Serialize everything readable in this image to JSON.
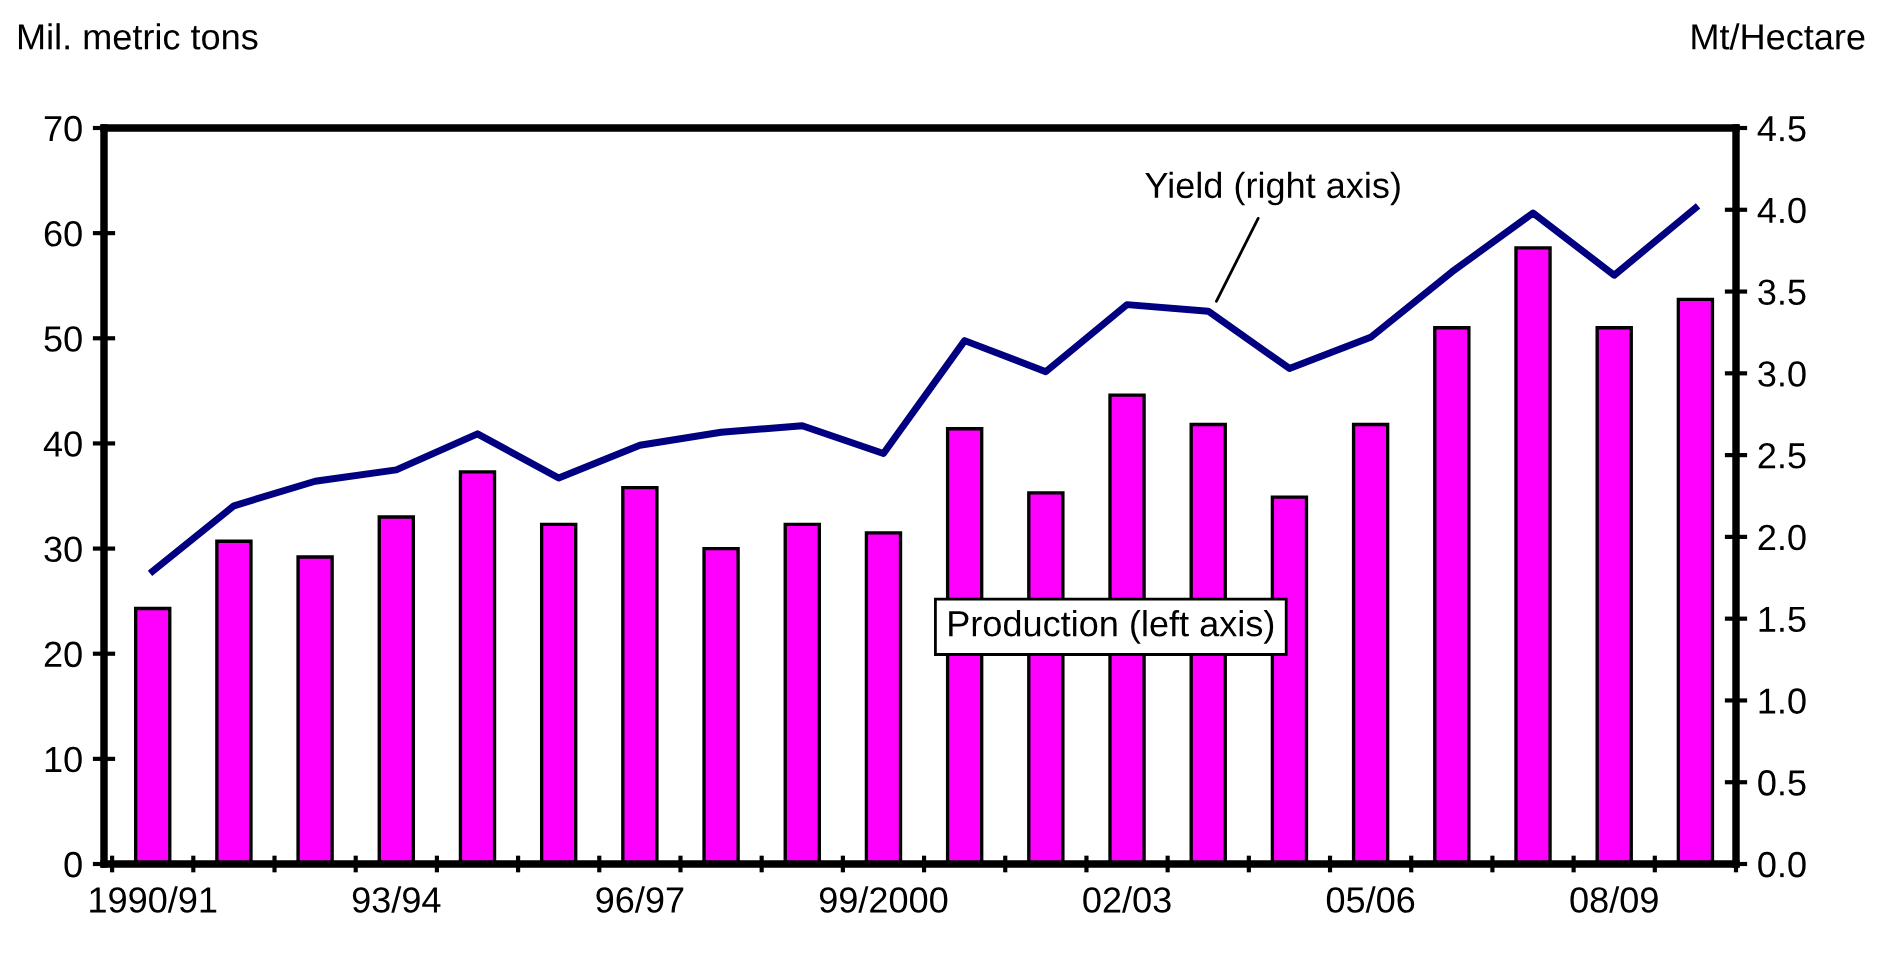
{
  "chart_data": {
    "type": "bar",
    "ylabel": "Mil. metric tons",
    "y2label": "Mt/Hectare",
    "categories": [
      "1990/91",
      null,
      null,
      "93/94",
      null,
      null,
      "96/97",
      null,
      null,
      "99/2000",
      null,
      null,
      "02/03",
      null,
      null,
      "05/06",
      null,
      null,
      "08/09",
      null
    ],
    "series": [
      {
        "name": "Production (left axis)",
        "color": "#ff00ff",
        "values": [
          24.3,
          30.7,
          29.2,
          33.0,
          37.3,
          32.3,
          35.8,
          30.0,
          32.3,
          31.5,
          41.4,
          35.3,
          44.6,
          41.8,
          34.9,
          41.8,
          51.0,
          58.6,
          51.0,
          53.7
        ]
      },
      {
        "name": "Yield (right axis)",
        "type": "line",
        "axis": "y2",
        "color": "#000080",
        "values": [
          1.79,
          2.19,
          2.34,
          2.41,
          2.63,
          2.36,
          2.56,
          2.64,
          2.68,
          2.51,
          3.2,
          3.01,
          3.42,
          3.38,
          3.03,
          3.22,
          3.62,
          3.98,
          3.6,
          4.01
        ]
      }
    ],
    "ylim": [
      0,
      70
    ],
    "yticks": [
      0,
      10,
      20,
      30,
      40,
      50,
      60,
      70
    ],
    "y2lim": [
      0,
      4.5
    ],
    "y2ticks": [
      {
        "value": 0,
        "label": "0.0"
      },
      {
        "value": 0.5,
        "label": "0.5"
      },
      {
        "value": 1,
        "label": "1.0"
      },
      {
        "value": 1.5,
        "label": "1.5"
      },
      {
        "value": 2,
        "label": "2.0"
      },
      {
        "value": 2.5,
        "label": "2.5"
      },
      {
        "value": 3,
        "label": "3.0"
      },
      {
        "value": 3.5,
        "label": "3.5"
      },
      {
        "value": 4,
        "label": "4.0"
      },
      {
        "value": 4.5,
        "label": "4.5"
      }
    ],
    "grid": false,
    "legend": false
  }
}
